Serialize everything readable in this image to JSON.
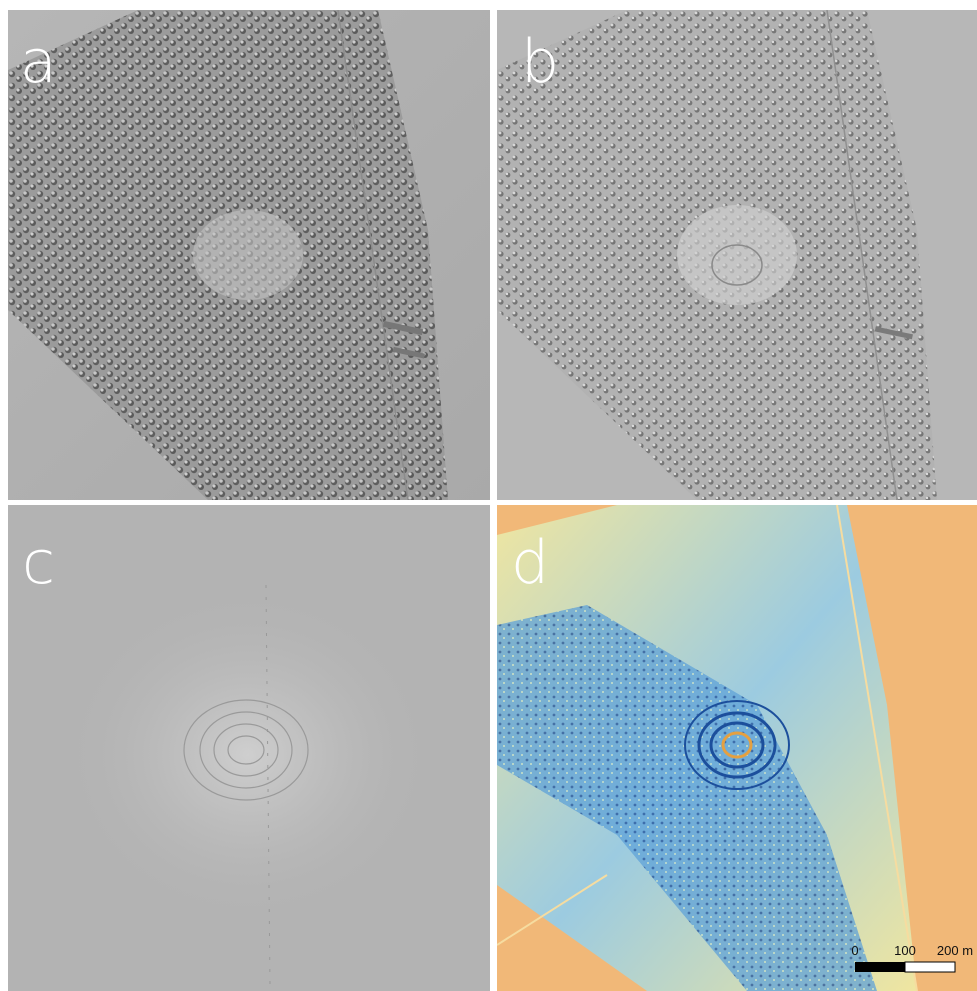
{
  "panels": [
    {
      "label": "a"
    },
    {
      "label": "b"
    },
    {
      "label": "c"
    },
    {
      "label": "d"
    }
  ],
  "scale_bar": {
    "labels": [
      "0",
      "100",
      "200 m"
    ]
  }
}
